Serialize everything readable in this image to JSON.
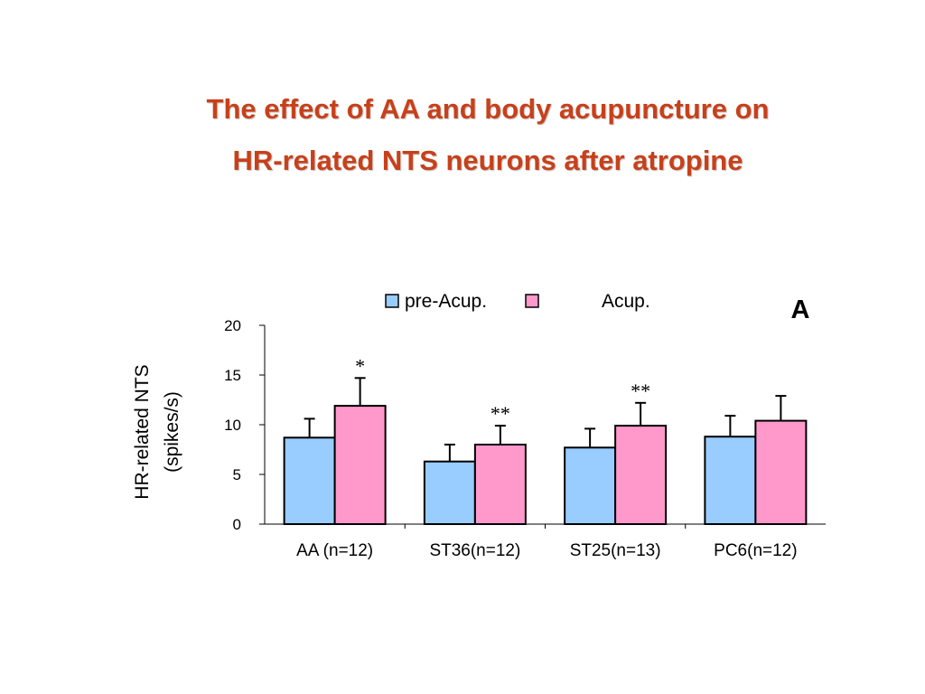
{
  "title": {
    "line1": "The effect of AA and body acupuncture on",
    "line2": "HR-related NTS neurons  after atropine"
  },
  "colors": {
    "title": "#c8401a",
    "pre": "#99ccff",
    "acup": "#ff99cc"
  },
  "chart_data": {
    "type": "bar",
    "panel_label": "A",
    "categories": [
      "AA (n=12)",
      "ST36(n=12)",
      "ST25(n=13)",
      "PC6(n=12)"
    ],
    "series": [
      {
        "name": "pre-Acup.",
        "values": [
          8.7,
          6.3,
          7.7,
          8.8
        ],
        "errors": [
          1.9,
          1.7,
          1.9,
          2.1
        ]
      },
      {
        "name": "Acup.",
        "values": [
          11.9,
          8.0,
          9.9,
          10.4
        ],
        "errors": [
          2.8,
          1.9,
          2.3,
          2.5
        ]
      }
    ],
    "significance": [
      "*",
      "**",
      "**",
      ""
    ],
    "ylabel_line1": "HR-related NTS",
    "ylabel_line2": "(spikes/s)",
    "ylim": [
      0,
      20
    ],
    "yticks": [
      "0",
      "5",
      "10",
      "15",
      "20"
    ],
    "grid": false,
    "legend_position": "top"
  }
}
